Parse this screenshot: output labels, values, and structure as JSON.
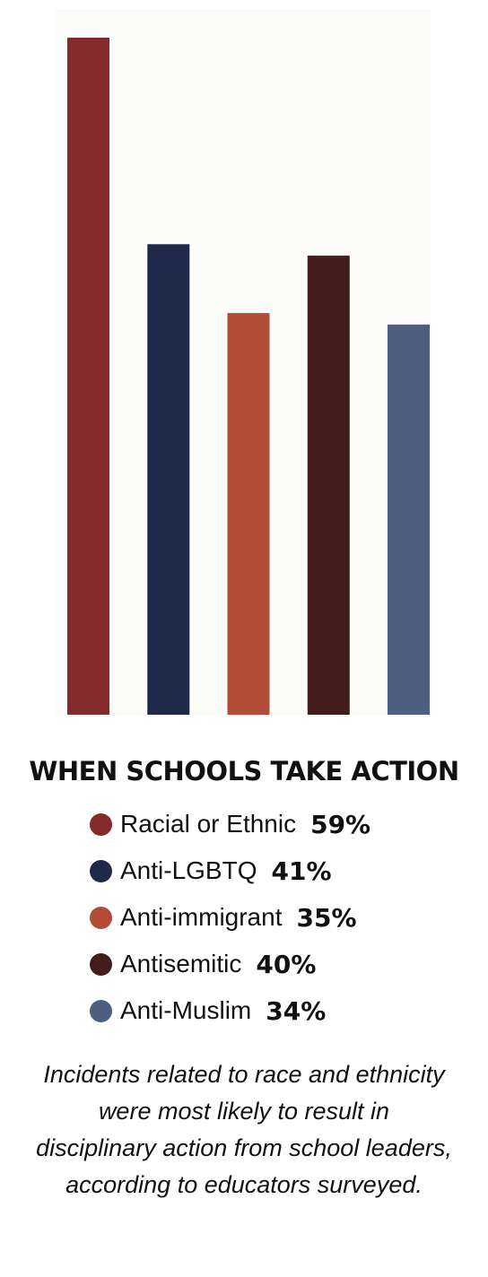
{
  "chart_data": {
    "type": "bar",
    "title": "WHEN SCHOOLS TAKE ACTION",
    "categories": [
      "Racial or Ethnic",
      "Anti-LGBTQ",
      "Anti-immigrant",
      "Antisemitic",
      "Anti-Muslim"
    ],
    "values": [
      59,
      41,
      35,
      40,
      34
    ],
    "value_labels": [
      "59%",
      "41%",
      "35%",
      "40%",
      "34%"
    ],
    "colors": [
      "#832a2c",
      "#1f2a4a",
      "#b14d37",
      "#431c1c",
      "#4e5e7e"
    ],
    "ylim": [
      0,
      59
    ],
    "grid": false,
    "legend_position": "bottom"
  },
  "caption": "Incidents related to race and ethnicity were most likely to result in disciplinary action from school leaders, according to educators surveyed."
}
